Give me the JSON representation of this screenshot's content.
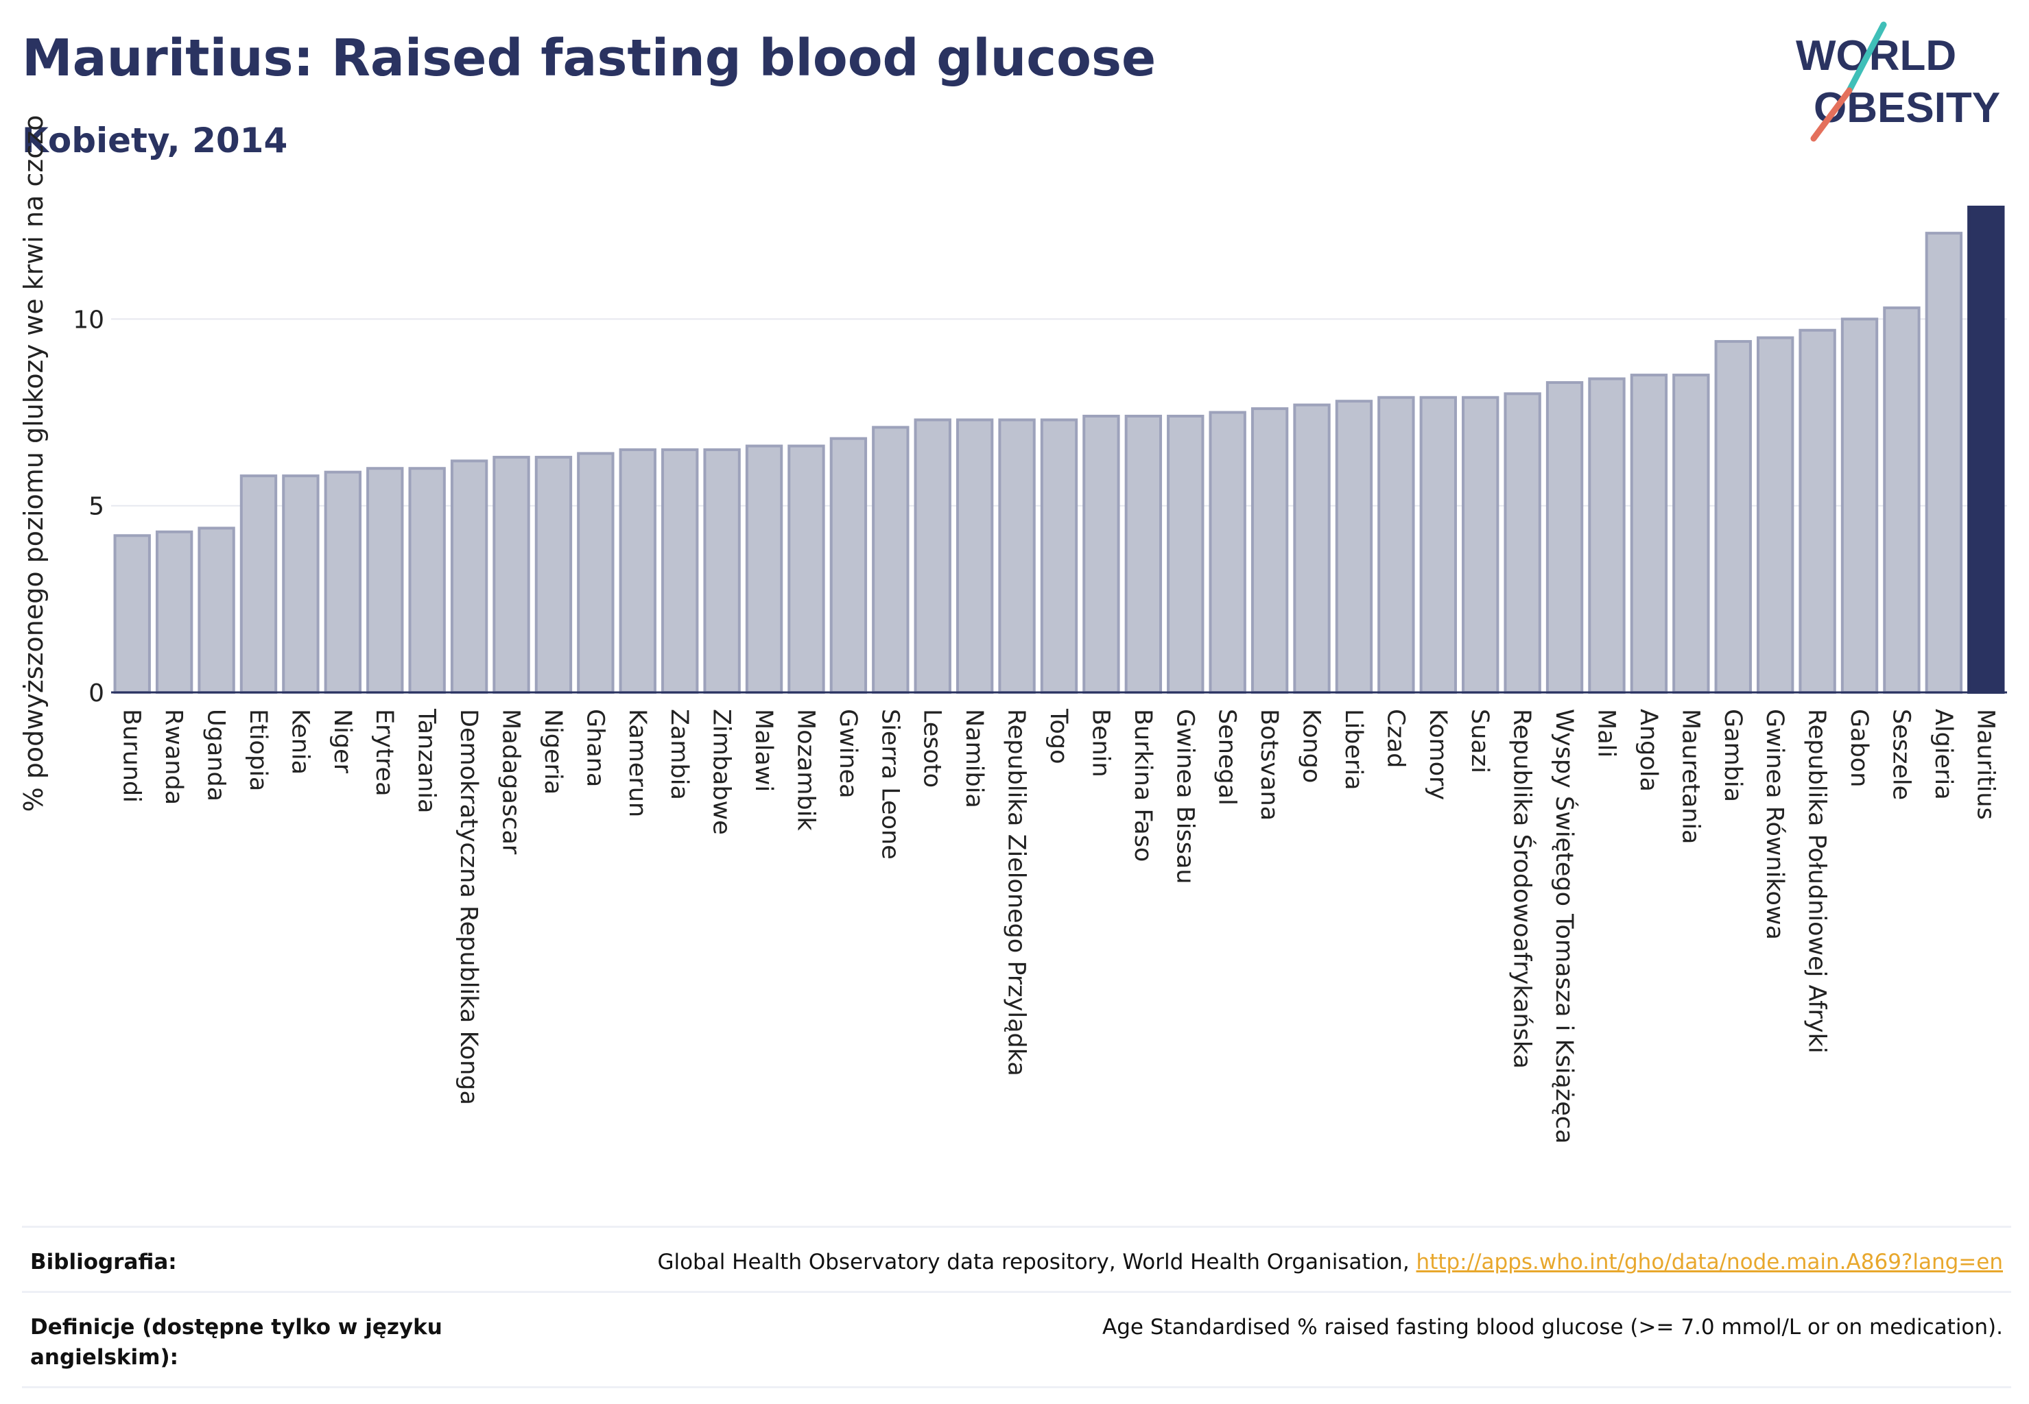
{
  "title": "Mauritius: Raised fasting blood glucose",
  "subtitle": "Kobiety, 2014",
  "logo": {
    "line1": "WORLD",
    "line2": "OBESITY"
  },
  "colors": {
    "bar": "#bec2d0",
    "bar_border": "#9da2bb",
    "highlight": "#2a3361",
    "grid": "#e6e8ef",
    "link": "#e8a72c"
  },
  "chart_data": {
    "type": "bar",
    "ylabel": "% podwyższonego poziomu glukozy we krwi na czczo",
    "ylim": [
      0,
      13.2
    ],
    "yticks": [
      0,
      5,
      10
    ],
    "grid": true,
    "highlight": "Mauritius",
    "categories": [
      "Burundi",
      "Rwanda",
      "Uganda",
      "Etiopia",
      "Kenia",
      "Niger",
      "Erytrea",
      "Tanzania",
      "Demokratyczna Republika Konga",
      "Madagascar",
      "Nigeria",
      "Ghana",
      "Kamerun",
      "Zambia",
      "Zimbabwe",
      "Malawi",
      "Mozambik",
      "Gwinea",
      "Sierra Leone",
      "Lesoto",
      "Namibia",
      "Republika Zielonego Przylądka",
      "Togo",
      "Benin",
      "Burkina Faso",
      "Gwinea Bissau",
      "Senegal",
      "Botsvana",
      "Kongo",
      "Liberia",
      "Czad",
      "Komory",
      "Suazi",
      "Republika Środowoafrykańska",
      "Wyspy Świętego Tomasza i Książęca",
      "Mali",
      "Angola",
      "Mauretania",
      "Gambia",
      "Gwinea Równikowa",
      "Republika Południowej Afryki",
      "Gabon",
      "Seszele",
      "Algieria",
      "Mauritius"
    ],
    "values": [
      4.2,
      4.3,
      4.4,
      5.8,
      5.8,
      5.9,
      6.0,
      6.0,
      6.2,
      6.3,
      6.3,
      6.4,
      6.5,
      6.5,
      6.5,
      6.6,
      6.6,
      6.8,
      7.1,
      7.3,
      7.3,
      7.3,
      7.3,
      7.4,
      7.4,
      7.4,
      7.5,
      7.6,
      7.7,
      7.8,
      7.9,
      7.9,
      7.9,
      8.0,
      8.3,
      8.4,
      8.5,
      8.5,
      9.4,
      9.5,
      9.7,
      10.0,
      10.3,
      12.3,
      13.0
    ]
  },
  "references": [
    {
      "label": "Bibliografia:",
      "text": "Global Health Observatory data repository, World Health Organisation, ",
      "link": "http://apps.who.int/gho/data/node.main.A869?lang=en"
    },
    {
      "label": "Definicje (dostępne tylko w języku angielskim):",
      "text": "Age Standardised % raised fasting blood glucose (>= 7.0 mmol/L or on medication).",
      "link": ""
    }
  ]
}
